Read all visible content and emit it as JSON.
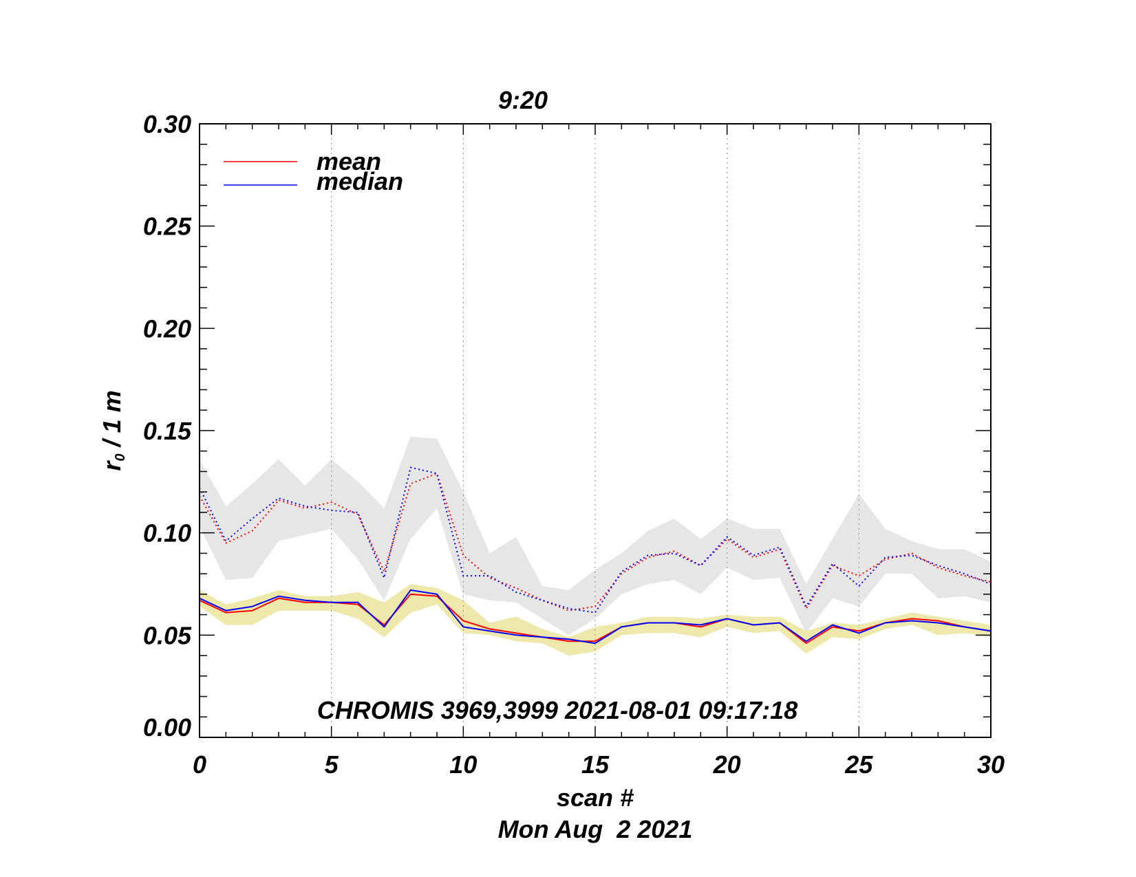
{
  "chart_data": {
    "type": "line",
    "title": "9:20",
    "xlabel": "scan #",
    "date_label": "Mon Aug  2 2021",
    "ylabel_main": "r",
    "ylabel_sub": "0",
    "ylabel_rest": " / 1 m",
    "annotation": "CHROMIS 3969,3999 2021-08-01 09:17:18",
    "xlim": [
      0,
      30
    ],
    "ylim": [
      0,
      0.3
    ],
    "x_ticks": [
      "0",
      "5",
      "10",
      "15",
      "20",
      "25",
      "30"
    ],
    "y_ticks": [
      "0.00",
      "0.05",
      "0.10",
      "0.15",
      "0.20",
      "0.25",
      "0.30"
    ],
    "legend": [
      {
        "name": "mean",
        "color": "#ff0000"
      },
      {
        "name": "median",
        "color": "#0000ff"
      }
    ],
    "x": [
      0,
      1,
      2,
      3,
      4,
      5,
      6,
      7,
      8,
      9,
      10,
      11,
      12,
      13,
      14,
      15,
      16,
      17,
      18,
      19,
      20,
      21,
      22,
      23,
      24,
      25,
      26,
      27,
      28,
      29,
      30
    ],
    "series": [
      {
        "name": "mean (low)",
        "style": "solid",
        "color": "#ff0000",
        "values": [
          0.067,
          0.061,
          0.062,
          0.068,
          0.066,
          0.066,
          0.065,
          0.055,
          0.07,
          0.069,
          0.057,
          0.053,
          0.051,
          0.049,
          0.047,
          0.047,
          0.054,
          0.056,
          0.056,
          0.054,
          0.058,
          0.055,
          0.056,
          0.046,
          0.054,
          0.052,
          0.056,
          0.058,
          0.057,
          0.054,
          0.052
        ]
      },
      {
        "name": "median (low)",
        "style": "solid",
        "color": "#0000ff",
        "values": [
          0.068,
          0.062,
          0.064,
          0.069,
          0.067,
          0.066,
          0.066,
          0.054,
          0.072,
          0.07,
          0.054,
          0.052,
          0.05,
          0.049,
          0.048,
          0.046,
          0.054,
          0.056,
          0.056,
          0.055,
          0.058,
          0.055,
          0.056,
          0.047,
          0.055,
          0.051,
          0.056,
          0.057,
          0.056,
          0.054,
          0.052
        ]
      },
      {
        "name": "mean (high)",
        "style": "dotted",
        "color": "#ff0000",
        "values": [
          0.118,
          0.095,
          0.101,
          0.116,
          0.112,
          0.115,
          0.109,
          0.081,
          0.124,
          0.129,
          0.089,
          0.078,
          0.073,
          0.067,
          0.062,
          0.064,
          0.08,
          0.088,
          0.091,
          0.084,
          0.097,
          0.088,
          0.092,
          0.063,
          0.084,
          0.079,
          0.087,
          0.09,
          0.083,
          0.079,
          0.076
        ]
      },
      {
        "name": "median (high)",
        "style": "dotted",
        "color": "#0000ff",
        "values": [
          0.122,
          0.096,
          0.107,
          0.117,
          0.113,
          0.111,
          0.11,
          0.078,
          0.132,
          0.129,
          0.079,
          0.079,
          0.071,
          0.067,
          0.063,
          0.061,
          0.081,
          0.089,
          0.09,
          0.084,
          0.098,
          0.089,
          0.093,
          0.064,
          0.085,
          0.074,
          0.088,
          0.089,
          0.084,
          0.08,
          0.075
        ]
      }
    ],
    "bands": [
      {
        "name": "spread (low)",
        "color": "#eee8aa",
        "upper": [
          0.072,
          0.065,
          0.068,
          0.072,
          0.069,
          0.069,
          0.071,
          0.066,
          0.075,
          0.073,
          0.067,
          0.056,
          0.059,
          0.053,
          0.049,
          0.054,
          0.056,
          0.059,
          0.059,
          0.058,
          0.06,
          0.059,
          0.059,
          0.052,
          0.056,
          0.055,
          0.058,
          0.061,
          0.059,
          0.057,
          0.055
        ]
      },
      {
        "name": "spread (high)",
        "color": "#e6e6e6",
        "upper": [
          0.136,
          0.113,
          0.124,
          0.136,
          0.123,
          0.136,
          0.125,
          0.112,
          0.147,
          0.146,
          0.12,
          0.09,
          0.098,
          0.074,
          0.072,
          0.082,
          0.09,
          0.101,
          0.107,
          0.097,
          0.107,
          0.102,
          0.102,
          0.075,
          0.097,
          0.119,
          0.102,
          0.096,
          0.092,
          0.092,
          0.086
        ]
      }
    ],
    "band_lower": {
      "spread (low)": [
        0.064,
        0.055,
        0.055,
        0.062,
        0.062,
        0.062,
        0.058,
        0.049,
        0.061,
        0.065,
        0.051,
        0.05,
        0.047,
        0.046,
        0.04,
        0.042,
        0.05,
        0.051,
        0.051,
        0.049,
        0.054,
        0.051,
        0.052,
        0.041,
        0.049,
        0.048,
        0.053,
        0.055,
        0.05,
        0.051,
        0.049
      ]
    },
    "band_lower_high": [
      0.103,
      0.077,
      0.078,
      0.096,
      0.099,
      0.102,
      0.087,
      0.067,
      0.097,
      0.112,
      0.07,
      0.067,
      0.066,
      0.058,
      0.05,
      0.058,
      0.07,
      0.075,
      0.077,
      0.07,
      0.083,
      0.077,
      0.078,
      0.051,
      0.068,
      0.064,
      0.08,
      0.08,
      0.068,
      0.069,
      0.066
    ]
  }
}
